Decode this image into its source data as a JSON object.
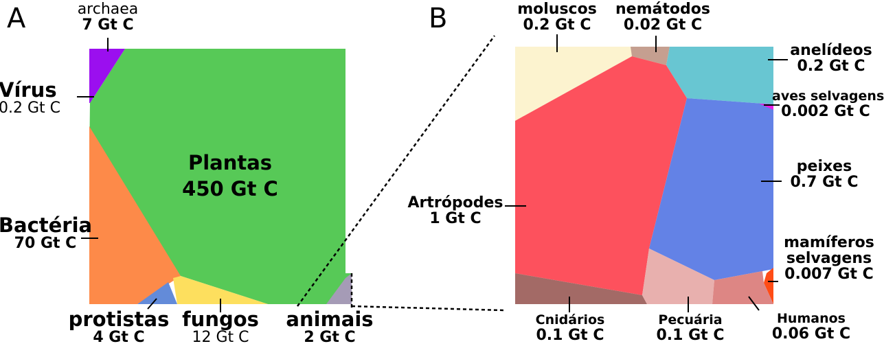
{
  "panels": {
    "a": {
      "letter": "A",
      "regions": [
        {
          "name": "archaea",
          "value": "7 Gt C",
          "color": "#9b0fef"
        },
        {
          "name": "Vírus",
          "value": "0.2 Gt C",
          "color": "#ffffff"
        },
        {
          "name": "Plantas",
          "value": "450 Gt C",
          "color": "#57c957"
        },
        {
          "name": "Bactéria",
          "value": "70 Gt C",
          "color": "#fd8a49"
        },
        {
          "name": "protistas",
          "value": "4 Gt C",
          "color": "#638bd9"
        },
        {
          "name": "fungos",
          "value": "12 Gt C",
          "color": "#fddf5e"
        },
        {
          "name": "animais",
          "value": "2 Gt C",
          "color": "#a59bb6"
        }
      ]
    },
    "b": {
      "letter": "B",
      "regions": [
        {
          "name": "moluscos",
          "label": "moluscos",
          "value": "0.2 Gt C",
          "color": "#fcf3cf"
        },
        {
          "name": "nematodos",
          "label": "nemátodos",
          "value": "0.02 Gt C",
          "color": "#c59f90"
        },
        {
          "name": "anelideos",
          "label": "anelídeos",
          "value": "0.2 Gt C",
          "color": "#68c6d2"
        },
        {
          "name": "aves-selvagens",
          "label": "aves selvagens",
          "value": "0.002 Gt C",
          "color": "#e91ee8"
        },
        {
          "name": "peixes",
          "label": "peixes",
          "value": "0.7 Gt C",
          "color": "#6382e6"
        },
        {
          "name": "artropodes",
          "label": "Artrópodes",
          "value": "1 Gt C",
          "color": "#fd515d"
        },
        {
          "name": "mamiferos-selvagens",
          "label": "mamíferos selvagens",
          "value": "0.007 Gt C",
          "color": "#ff4c16"
        },
        {
          "name": "cnidarios",
          "label": "Cnidários",
          "value": "0.1 Gt C",
          "color": "#a36a66"
        },
        {
          "name": "pecuaria",
          "label": "Pecuária",
          "value": "0.1 Gt C",
          "color": "#e8b0ae"
        },
        {
          "name": "humanos",
          "label": "Humanos",
          "value": "0.06 Gt C",
          "color": "#dd8684"
        }
      ]
    }
  }
}
